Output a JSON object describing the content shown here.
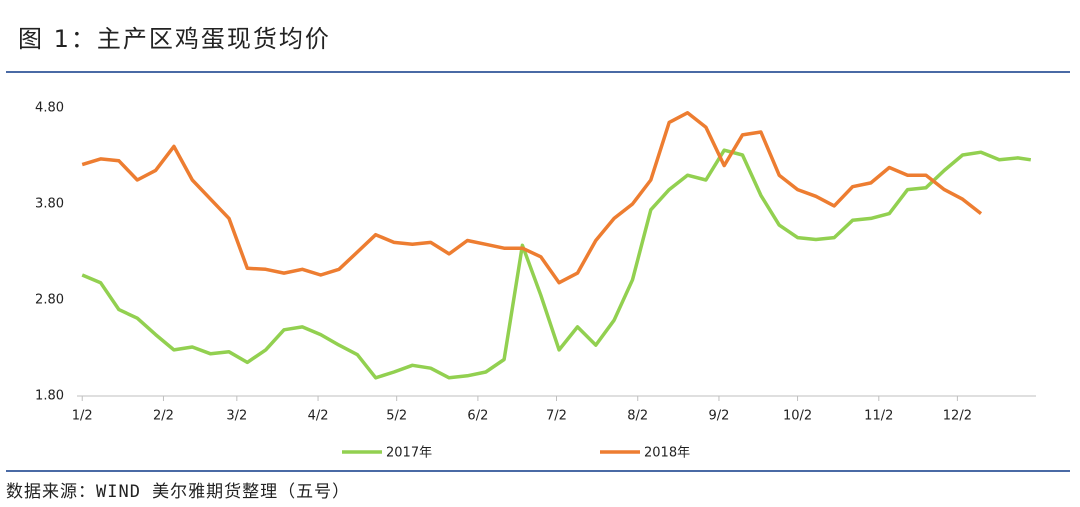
{
  "chart_data": {
    "type": "line",
    "title": "图 1：主产区鸡蛋现货均价",
    "source": "数据来源：WIND 美尔雅期货整理（五号）",
    "x": [
      0,
      7,
      14,
      21,
      28,
      35,
      42,
      49,
      56,
      63,
      70,
      77,
      84,
      91,
      98,
      105,
      112,
      119,
      126,
      133,
      140,
      147,
      154,
      161,
      168,
      175,
      182,
      189,
      196,
      203,
      210,
      217,
      224,
      231,
      238,
      245,
      252,
      259,
      266,
      273,
      280,
      287,
      294,
      301,
      308,
      315,
      322,
      329,
      336,
      343,
      350,
      357,
      362
    ],
    "xlim": [
      -2,
      364
    ],
    "xticks": [
      {
        "value": 0,
        "label": "1/2"
      },
      {
        "value": 31,
        "label": "2/2"
      },
      {
        "value": 59,
        "label": "3/2"
      },
      {
        "value": 90,
        "label": "4/2"
      },
      {
        "value": 120,
        "label": "5/2"
      },
      {
        "value": 151,
        "label": "6/2"
      },
      {
        "value": 181,
        "label": "7/2"
      },
      {
        "value": 212,
        "label": "8/2"
      },
      {
        "value": 243,
        "label": "9/2"
      },
      {
        "value": 273,
        "label": "10/2"
      },
      {
        "value": 304,
        "label": "11/2"
      },
      {
        "value": 334,
        "label": "12/2"
      }
    ],
    "ylim": [
      1.8,
      4.8
    ],
    "yticks": [
      {
        "value": 1.8,
        "label": "1.80"
      },
      {
        "value": 2.8,
        "label": "2.80"
      },
      {
        "value": 3.8,
        "label": "3.80"
      },
      {
        "value": 4.8,
        "label": "4.80"
      }
    ],
    "series": [
      {
        "name": "2017年",
        "color": "#92d050",
        "values": [
          3.06,
          2.98,
          2.7,
          2.61,
          2.44,
          2.28,
          2.31,
          2.24,
          2.26,
          2.15,
          2.28,
          2.49,
          2.52,
          2.44,
          2.33,
          2.23,
          1.99,
          2.05,
          2.12,
          2.09,
          1.99,
          2.01,
          2.05,
          2.18,
          3.37,
          2.85,
          2.28,
          2.52,
          2.33,
          2.59,
          3.01,
          3.74,
          3.95,
          4.1,
          4.05,
          4.36,
          4.31,
          3.89,
          3.58,
          3.45,
          3.43,
          3.45,
          3.63,
          3.65,
          3.7,
          3.95,
          3.97,
          4.15,
          4.31,
          4.34,
          4.26,
          4.28,
          4.26
        ]
      },
      {
        "name": "2018年",
        "color": "#ed7d31",
        "values": [
          4.21,
          4.27,
          4.25,
          4.05,
          4.15,
          4.4,
          4.05,
          3.85,
          3.65,
          3.13,
          3.12,
          3.08,
          3.12,
          3.06,
          3.12,
          3.3,
          3.48,
          3.4,
          3.38,
          3.4,
          3.28,
          3.42,
          3.38,
          3.34,
          3.34,
          3.25,
          2.98,
          3.08,
          3.42,
          3.65,
          3.8,
          4.05,
          4.65,
          4.75,
          4.6,
          4.2,
          4.52,
          4.55,
          4.1,
          3.95,
          3.88,
          3.78,
          3.98,
          4.02,
          4.18,
          4.1,
          4.1,
          3.95,
          3.85,
          3.7,
          null,
          null,
          null
        ]
      }
    ]
  }
}
